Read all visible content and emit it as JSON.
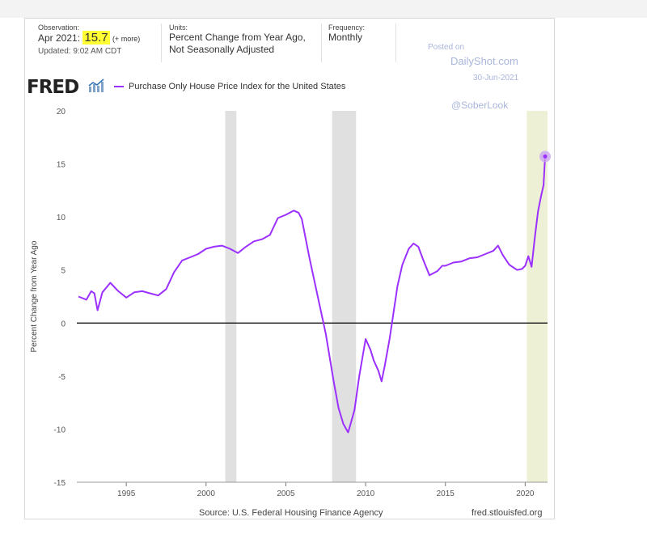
{
  "observation": {
    "header": "Observation:",
    "date": "Apr 2021:",
    "value": "15.7",
    "more": "(+ more)",
    "updated": "Updated: 9:02 AM CDT"
  },
  "units": {
    "header": "Units:",
    "line1": "Percent Change from Year Ago,",
    "line2": "Not Seasonally Adjusted"
  },
  "frequency": {
    "header": "Frequency:",
    "value": "Monthly"
  },
  "logo": "FRED",
  "watermark": {
    "posted": "Posted on",
    "site": "DailyShot.com",
    "date": "30-Jun-2021",
    "handle": "@SoberLook"
  },
  "footer": {
    "source": "Source: U.S. Federal Housing Finance Agency",
    "url": "fred.stlouisfed.org"
  },
  "colors": {
    "series": "#9b30ff",
    "recession": "#e0e0e0",
    "highlight": "#eef0d6",
    "zero_line": "#000000"
  },
  "chart_data": {
    "type": "line",
    "title": "",
    "xlabel": "",
    "ylabel": "Percent Change from Year Ago",
    "legend": "Purchase Only House Price Index for the United States",
    "xlim": [
      1991.9,
      2021.4
    ],
    "ylim": [
      -15,
      20
    ],
    "yticks": [
      -15,
      -10,
      -5,
      0,
      5,
      10,
      15,
      20
    ],
    "xticks": [
      1995,
      2000,
      2005,
      2010,
      2015,
      2020
    ],
    "grid": false,
    "recessions": [
      [
        2001.2,
        2001.9
      ],
      [
        2007.9,
        2009.4
      ]
    ],
    "highlight_band": [
      2020.1,
      2021.4
    ],
    "series": [
      {
        "name": "Purchase Only House Price Index for the United States",
        "x": [
          1992.0,
          1992.5,
          1992.8,
          1993.0,
          1993.2,
          1993.5,
          1994.0,
          1994.5,
          1995.0,
          1995.5,
          1996.0,
          1996.5,
          1997.0,
          1997.5,
          1998.0,
          1998.5,
          1999.0,
          1999.5,
          2000.0,
          2000.5,
          2001.0,
          2001.5,
          2002.0,
          2002.5,
          2003.0,
          2003.5,
          2004.0,
          2004.5,
          2005.0,
          2005.5,
          2005.8,
          2006.0,
          2006.5,
          2007.0,
          2007.5,
          2008.0,
          2008.3,
          2008.6,
          2008.9,
          2009.0,
          2009.3,
          2009.6,
          2010.0,
          2010.3,
          2010.5,
          2010.8,
          2011.0,
          2011.2,
          2011.5,
          2011.8,
          2012.0,
          2012.3,
          2012.7,
          2013.0,
          2013.3,
          2013.6,
          2014.0,
          2014.5,
          2014.8,
          2015.0,
          2015.5,
          2016.0,
          2016.5,
          2017.0,
          2017.5,
          2018.0,
          2018.3,
          2018.6,
          2019.0,
          2019.5,
          2019.8,
          2020.0,
          2020.2,
          2020.4,
          2020.6,
          2020.8,
          2021.0,
          2021.15,
          2021.25
        ],
        "y": [
          2.5,
          2.2,
          3.0,
          2.8,
          1.2,
          2.9,
          3.8,
          3.0,
          2.4,
          2.9,
          3.0,
          2.8,
          2.6,
          3.2,
          4.8,
          5.9,
          6.2,
          6.5,
          7.0,
          7.2,
          7.3,
          7.0,
          6.6,
          7.2,
          7.7,
          7.9,
          8.3,
          9.9,
          10.2,
          10.6,
          10.4,
          9.8,
          6.0,
          2.5,
          -1.0,
          -5.5,
          -8.0,
          -9.5,
          -10.3,
          -9.8,
          -8.2,
          -5.0,
          -1.5,
          -2.5,
          -3.5,
          -4.5,
          -5.5,
          -4.0,
          -1.5,
          1.5,
          3.5,
          5.5,
          7.0,
          7.5,
          7.2,
          6.0,
          4.5,
          4.9,
          5.4,
          5.4,
          5.7,
          5.8,
          6.1,
          6.2,
          6.5,
          6.8,
          7.3,
          6.4,
          5.5,
          5.0,
          5.1,
          5.4,
          6.3,
          5.3,
          8.0,
          10.5,
          12.0,
          13.0,
          15.7
        ]
      }
    ],
    "annotations": [
      "last point marker at Apr 2021: 15.7"
    ]
  }
}
